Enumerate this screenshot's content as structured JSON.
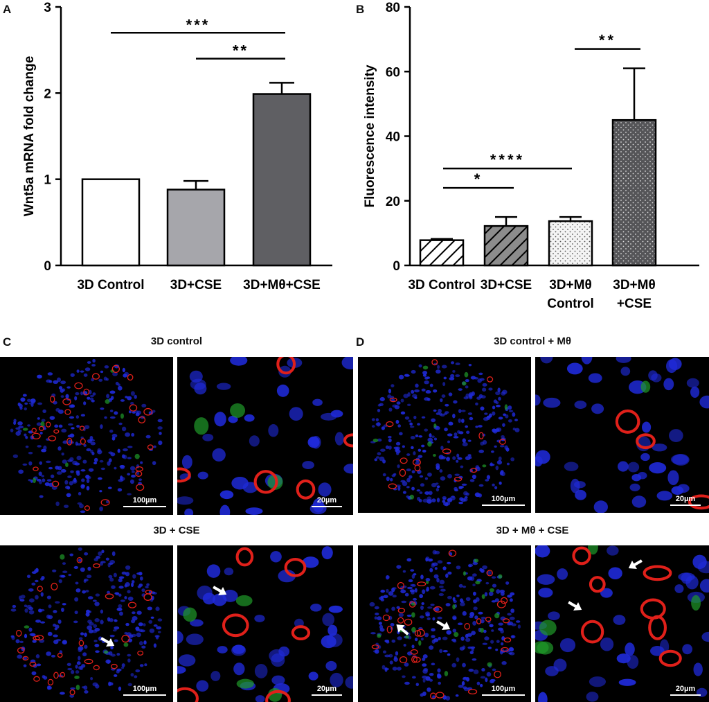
{
  "panels": {
    "A": "A",
    "B": "B",
    "C": "C",
    "D": "D"
  },
  "chart_data": [
    {
      "type": "bar",
      "ylabel": "Wnt5a mRNA fold change",
      "ylim": [
        0,
        3
      ],
      "yticks": [
        "0",
        "1",
        "2",
        "3"
      ],
      "categories": [
        "3D Control",
        "3D+CSE",
        "3D+Mθ+CSE"
      ],
      "values": [
        1.0,
        0.88,
        1.99
      ],
      "errors": [
        0.0,
        0.1,
        0.13
      ],
      "fills": [
        "#ffffff",
        "#a6a6ab",
        "#5f5f63"
      ],
      "significance": [
        {
          "label": "***",
          "from": 0,
          "to": 2,
          "y": 2.7
        },
        {
          "label": "**",
          "from": 1,
          "to": 2,
          "y": 2.4
        }
      ]
    },
    {
      "type": "bar",
      "ylabel": "Fluorescence intensity",
      "ylim": [
        0,
        80
      ],
      "yticks": [
        "0",
        "20",
        "40",
        "60",
        "80"
      ],
      "categories": [
        [
          "3D Control"
        ],
        [
          "3D+CSE"
        ],
        [
          "3D+Mθ",
          "Control"
        ],
        [
          "3D+Mθ",
          "+CSE"
        ]
      ],
      "values": [
        7.8,
        12.2,
        13.7,
        45.0
      ],
      "errors": [
        0.4,
        2.8,
        1.3,
        16.0
      ],
      "patterns": [
        "hatch-white",
        "hatch-grey",
        "dots-light",
        "dots-dark"
      ],
      "significance": [
        {
          "label": "**",
          "from": 2,
          "to": 3,
          "y": 67
        },
        {
          "label": "****",
          "from": 0,
          "to": 2,
          "y": 30
        },
        {
          "label": "*",
          "from": 0,
          "to": 1,
          "y": 24
        }
      ]
    }
  ],
  "micrographs": {
    "c_top_title": "3D control",
    "c_bottom_title": "3D + CSE",
    "d_top_title": "3D control + Mθ",
    "d_bottom_title": "3D + Mθ + CSE",
    "scale_100": "100µm",
    "scale_20": "20µm"
  }
}
